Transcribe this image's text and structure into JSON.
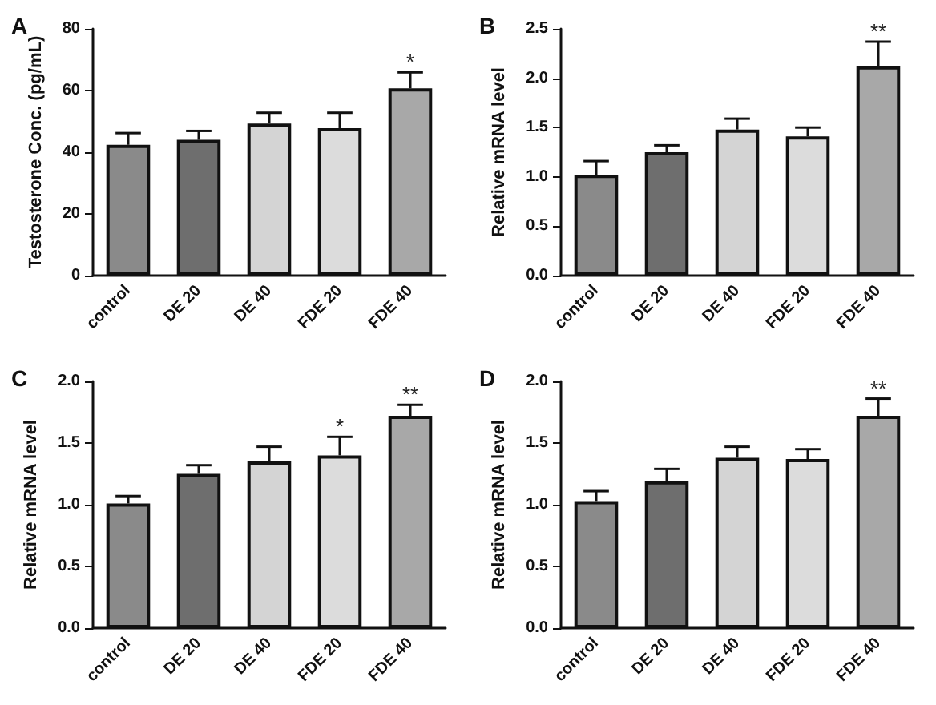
{
  "chart_data": [
    {
      "type": "bar",
      "title": "A",
      "ylabel": "Testosterone Conc. (pg/mL)",
      "categories": [
        "control",
        "DE 20",
        "DE 40",
        "FDE 20",
        "FDE 40"
      ],
      "values": [
        42.4,
        44,
        49.3,
        47.8,
        60.7
      ],
      "errors": [
        [
          42.4,
          46.2
        ],
        [
          44,
          46.9
        ],
        [
          49.3,
          52.8
        ],
        [
          47.8,
          52.8
        ],
        [
          60.7,
          65.9
        ]
      ],
      "colors": [
        "#8a8a8a",
        "#6e6e6e",
        "#d4d4d4",
        "#dcdcdc",
        "#a8a8a8"
      ],
      "ylim": [
        0,
        80
      ],
      "yticks": [
        0,
        20,
        40,
        60,
        80
      ],
      "grid": false,
      "annotations": [
        {
          "text": "*",
          "x": "FDE 40",
          "y": 66
        }
      ]
    },
    {
      "type": "bar",
      "title": "B",
      "ylabel": "Relative mRNA level",
      "categories": [
        "control",
        "DE 20",
        "DE 40",
        "FDE 20",
        "FDE 40"
      ],
      "values": [
        1.02,
        1.25,
        1.48,
        1.41,
        2.12
      ],
      "errors": [
        [
          1.02,
          1.16
        ],
        [
          1.25,
          1.32
        ],
        [
          1.48,
          1.59
        ],
        [
          1.41,
          1.5
        ],
        [
          2.12,
          2.37
        ]
      ],
      "colors": [
        "#8a8a8a",
        "#6e6e6e",
        "#d4d4d4",
        "#dcdcdc",
        "#a8a8a8"
      ],
      "ylim": [
        0,
        2.5
      ],
      "yticks": [
        {
          "value": 0,
          "label": "0.0"
        },
        {
          "value": 0.5,
          "label": "0.5"
        },
        {
          "value": 1,
          "label": "1.0"
        },
        {
          "value": 1.5,
          "label": "1.5"
        },
        {
          "value": 2,
          "label": "2.0"
        },
        {
          "value": 2.5,
          "label": "2.5"
        }
      ],
      "grid": false,
      "annotations": [
        {
          "text": "**",
          "x": "FDE 40",
          "y": 2.37
        }
      ]
    },
    {
      "type": "bar",
      "title": "C",
      "ylabel": "Relative mRNA level",
      "categories": [
        "control",
        "DE 20",
        "DE 40",
        "FDE 20",
        "FDE 40"
      ],
      "values": [
        1.01,
        1.25,
        1.35,
        1.4,
        1.72
      ],
      "errors": [
        [
          1.01,
          1.07
        ],
        [
          1.25,
          1.32
        ],
        [
          1.35,
          1.47
        ],
        [
          1.4,
          1.55
        ],
        [
          1.72,
          1.81
        ]
      ],
      "colors": [
        "#8a8a8a",
        "#6e6e6e",
        "#d4d4d4",
        "#dcdcdc",
        "#a8a8a8"
      ],
      "ylim": [
        0,
        2
      ],
      "yticks": [
        {
          "value": 0,
          "label": "0.0"
        },
        {
          "value": 0.5,
          "label": "0.5"
        },
        {
          "value": 1,
          "label": "1.0"
        },
        {
          "value": 1.5,
          "label": "1.5"
        },
        {
          "value": 2,
          "label": "2.0"
        }
      ],
      "grid": false,
      "annotations": [
        {
          "text": "*",
          "x": "FDE 20",
          "y": 1.55
        },
        {
          "text": "**",
          "x": "FDE 40",
          "y": 1.81
        }
      ]
    },
    {
      "type": "bar",
      "title": "D",
      "ylabel": "Relative mRNA level",
      "categories": [
        "control",
        "DE 20",
        "DE 40",
        "FDE 20",
        "FDE 40"
      ],
      "values": [
        1.03,
        1.19,
        1.38,
        1.37,
        1.72
      ],
      "errors": [
        [
          1.03,
          1.11
        ],
        [
          1.19,
          1.29
        ],
        [
          1.38,
          1.47
        ],
        [
          1.37,
          1.45
        ],
        [
          1.72,
          1.86
        ]
      ],
      "colors": [
        "#8a8a8a",
        "#6e6e6e",
        "#d4d4d4",
        "#dcdcdc",
        "#a8a8a8"
      ],
      "ylim": [
        0,
        2
      ],
      "yticks": [
        {
          "value": 0,
          "label": "0.0"
        },
        {
          "value": 0.5,
          "label": "0.5"
        },
        {
          "value": 1,
          "label": "1.0"
        },
        {
          "value": 1.5,
          "label": "1.5"
        },
        {
          "value": 2,
          "label": "2.0"
        }
      ],
      "grid": false,
      "annotations": [
        {
          "text": "**",
          "x": "FDE 40",
          "y": 1.86
        }
      ]
    }
  ]
}
